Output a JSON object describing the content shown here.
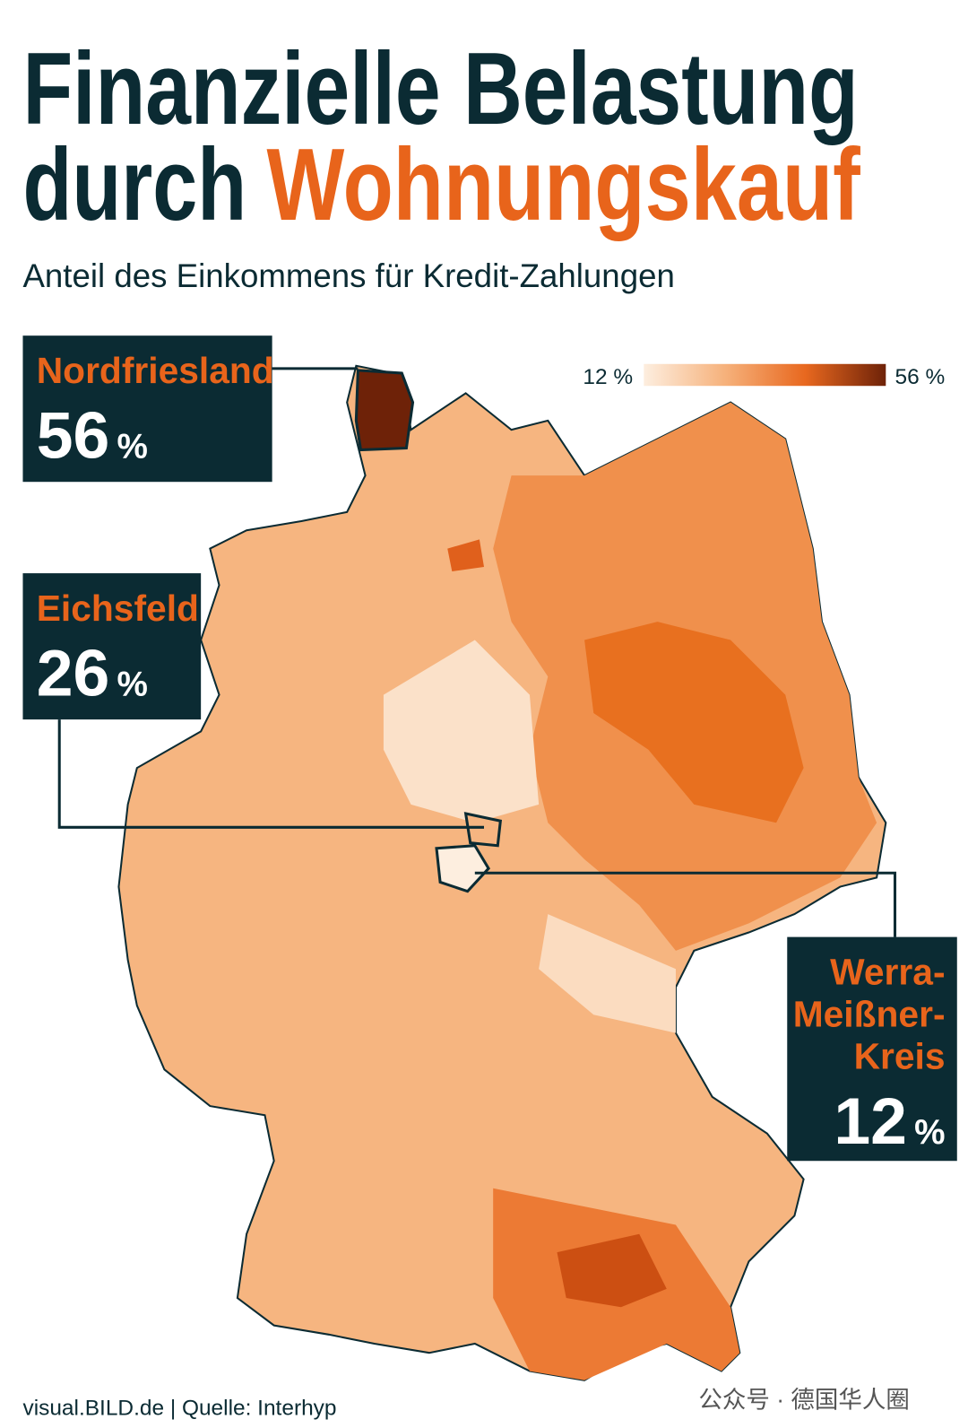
{
  "header": {
    "title_line1": "Finanzielle Belastung",
    "title_line2_dark": "durch",
    "title_line2_accent": "Wohnungskauf",
    "subtitle": "Anteil des Einkommens für Kredit-Zahlungen"
  },
  "legend": {
    "min": 12,
    "min_label": "12 %",
    "max": 56,
    "max_label": "56 %",
    "colors": [
      "#fdeedf",
      "#f6b27c",
      "#e8681f",
      "#6e2208"
    ]
  },
  "callouts": [
    {
      "name_lines": [
        "Nordfriesland"
      ],
      "value": 56,
      "unit": "%"
    },
    {
      "name_lines": [
        "Eichsfeld"
      ],
      "value": 26,
      "unit": "%"
    },
    {
      "name_lines": [
        "Werra-",
        "Meißner-",
        "Kreis"
      ],
      "value": 12,
      "unit": "%"
    }
  ],
  "footer": {
    "source": "visual.BILD.de | Quelle: Interhyp",
    "watermark": "公众号 · 德国华人圈"
  }
}
